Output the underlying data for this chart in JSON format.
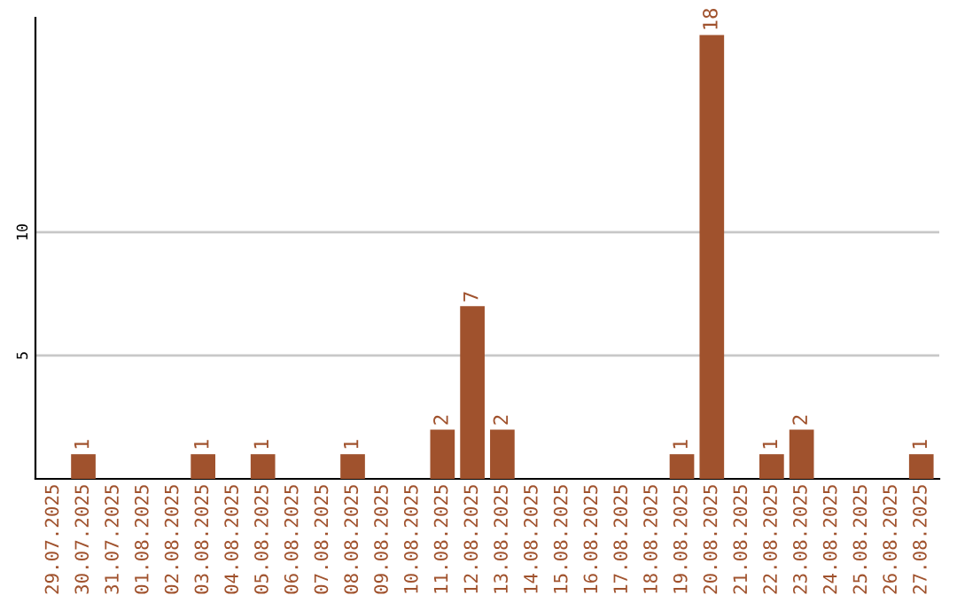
{
  "chart_data": {
    "type": "bar",
    "categories": [
      "29.07.2025",
      "30.07.2025",
      "31.07.2025",
      "01.08.2025",
      "02.08.2025",
      "03.08.2025",
      "04.08.2025",
      "05.08.2025",
      "06.08.2025",
      "07.08.2025",
      "08.08.2025",
      "09.08.2025",
      "10.08.2025",
      "11.08.2025",
      "12.08.2025",
      "13.08.2025",
      "14.08.2025",
      "15.08.2025",
      "16.08.2025",
      "17.08.2025",
      "18.08.2025",
      "19.08.2025",
      "20.08.2025",
      "21.08.2025",
      "22.08.2025",
      "23.08.2025",
      "24.08.2025",
      "25.08.2025",
      "26.08.2025",
      "27.08.2025"
    ],
    "values": [
      0,
      1,
      0,
      0,
      0,
      1,
      0,
      1,
      0,
      0,
      1,
      0,
      0,
      2,
      7,
      2,
      0,
      0,
      0,
      0,
      0,
      1,
      18,
      0,
      1,
      2,
      0,
      0,
      0,
      1
    ],
    "value_labels": [
      null,
      "1",
      null,
      null,
      null,
      "1",
      null,
      "1",
      null,
      null,
      "1",
      null,
      null,
      "2",
      "7",
      "2",
      null,
      null,
      null,
      null,
      null,
      "1",
      "18",
      null,
      "1",
      "2",
      null,
      null,
      null,
      "1"
    ],
    "color": "#a0522d",
    "ylim": [
      0,
      18.7
    ],
    "yticks": [
      5,
      10
    ],
    "grid": "y",
    "legend": false
  }
}
